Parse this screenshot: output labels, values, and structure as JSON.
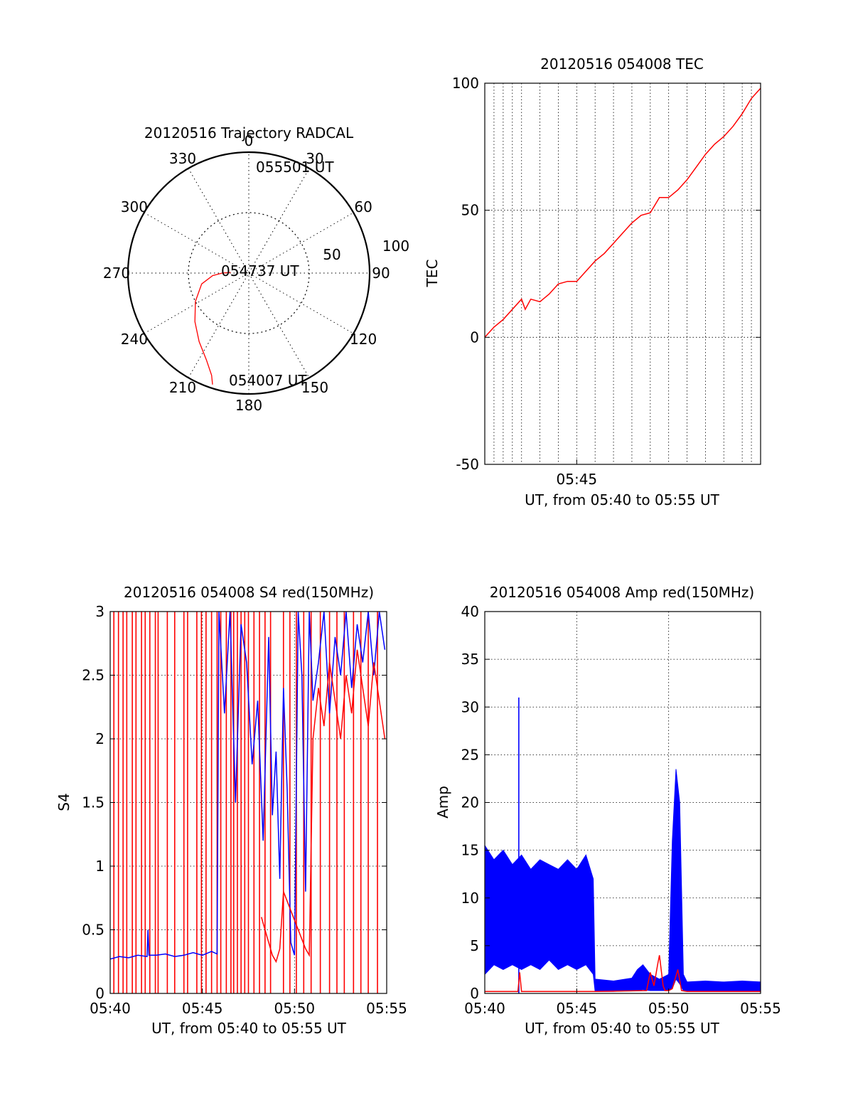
{
  "colors": {
    "red": "#ff0000",
    "blue": "#0000ff",
    "axis": "#000000",
    "grid": "#000000",
    "background": "#ffffff"
  },
  "chart_data": [
    {
      "id": "trajectory",
      "type": "polar",
      "title": "20120516 Trajectory RADCAL",
      "rmax": 100,
      "ring_values": [
        50,
        100
      ],
      "ring_labels": [
        "50",
        "100"
      ],
      "azimuth_labels": [
        "0",
        "30",
        "60",
        "90",
        "120",
        "150",
        "180",
        "210",
        "240",
        "270",
        "300",
        "330"
      ],
      "annotations": [
        "055501 UT",
        "054737 UT",
        "054007 UT"
      ],
      "series": [
        {
          "color": "red",
          "points": [
            [
              198,
              97
            ],
            [
              200,
              90
            ],
            [
              206,
              80
            ],
            [
              216,
              70
            ],
            [
              228,
              60
            ],
            [
              242,
              50
            ],
            [
              257,
              40
            ],
            [
              266,
              30
            ],
            [
              270,
              22
            ],
            [
              272,
              15
            ]
          ]
        }
      ]
    },
    {
      "id": "tec",
      "type": "line",
      "title": "20120516 054008 TEC",
      "ylabel": "TEC",
      "xlabel": "UT, from 05:40 to 05:55 UT",
      "xlim": [
        0,
        15
      ],
      "ylim": [
        -50,
        100
      ],
      "yticks": [
        -50,
        0,
        50,
        100
      ],
      "ytick_labels": [
        "-50",
        "0",
        "50",
        "100"
      ],
      "xticks": [
        5
      ],
      "xtick_labels": [
        "05:45"
      ],
      "xgrid": [
        0.5,
        1,
        1.5,
        2,
        3,
        4,
        5,
        6,
        7,
        8,
        9,
        10,
        11,
        12,
        13,
        14,
        14.5
      ],
      "grid": true,
      "series": [
        {
          "color": "red",
          "x": [
            0,
            0.5,
            1,
            1.5,
            2,
            2.2,
            2.5,
            3,
            3.5,
            4,
            4.5,
            5,
            5.5,
            6,
            6.5,
            7,
            7.5,
            8,
            8.5,
            9,
            9.5,
            10,
            10.5,
            11,
            11.5,
            12,
            12.5,
            13,
            13.5,
            14,
            14.5,
            15
          ],
          "y": [
            0,
            4,
            7,
            11,
            15,
            11,
            15,
            14,
            17,
            21,
            22,
            22,
            26,
            30,
            33,
            37,
            41,
            45,
            48,
            49,
            55,
            55,
            58,
            62,
            67,
            72,
            76,
            79,
            83,
            88,
            94,
            98
          ]
        }
      ]
    },
    {
      "id": "s4",
      "type": "line",
      "title": "20120516 054008 S4 red(150MHz)",
      "ylabel": "S4",
      "xlabel": "UT, from 05:40 to 05:55 UT",
      "xlim": [
        0,
        15
      ],
      "ylim": [
        0,
        3
      ],
      "yticks": [
        0,
        0.5,
        1,
        1.5,
        2,
        2.5,
        3
      ],
      "ytick_labels": [
        "0",
        "0.5",
        "1",
        "1.5",
        "2",
        "2.5",
        "3"
      ],
      "xticks": [
        0,
        5,
        10,
        15
      ],
      "xtick_labels": [
        "05:40",
        "05:45",
        "05:50",
        "05:55"
      ],
      "grid": true,
      "series": [
        {
          "color": "red",
          "style": "spikes",
          "x": [
            0.2,
            0.45,
            0.7,
            0.9,
            1.2,
            1.4,
            1.7,
            1.9,
            2.15,
            2.45,
            2.6,
            3.1,
            3.5,
            4.0,
            4.2,
            4.7,
            4.95,
            5.2,
            5.5,
            5.8,
            6.0,
            6.3,
            6.55,
            6.7,
            6.9,
            7.1,
            7.3,
            7.5,
            7.8,
            8.1,
            8.4,
            8.7,
            9.4,
            9.75,
            10.1,
            10.5,
            10.9,
            11.4,
            11.9,
            12.3,
            12.7,
            13.2,
            13.6,
            14.0,
            14.5
          ]
        },
        {
          "color": "blue",
          "x": [
            0,
            0.5,
            1,
            1.5,
            2,
            2.05,
            2.1,
            2.5,
            3,
            3.5,
            4,
            4.5,
            5,
            5.5,
            5.8,
            5.9,
            6.2,
            6.5,
            6.8,
            7.1,
            7.4,
            7.7,
            8.0,
            8.3,
            8.6,
            8.8,
            9.0,
            9.2,
            9.4,
            9.6,
            9.8,
            10.0,
            10.2,
            10.4,
            10.6,
            10.8,
            11.0,
            11.3,
            11.6,
            11.9,
            12.2,
            12.5,
            12.8,
            13.1,
            13.4,
            13.7,
            14.0,
            14.3,
            14.6,
            14.9
          ],
          "y": [
            0.27,
            0.29,
            0.28,
            0.3,
            0.29,
            0.5,
            0.3,
            0.3,
            0.31,
            0.29,
            0.3,
            0.32,
            0.3,
            0.33,
            0.31,
            3.0,
            2.2,
            3.0,
            1.5,
            2.9,
            2.6,
            1.8,
            2.3,
            1.2,
            2.8,
            1.4,
            1.9,
            0.9,
            2.4,
            1.6,
            0.4,
            0.3,
            3.0,
            2.5,
            0.8,
            3.0,
            2.3,
            2.6,
            3.0,
            2.2,
            2.8,
            2.5,
            3.0,
            2.4,
            2.9,
            2.6,
            3.0,
            2.5,
            3.0,
            2.7
          ]
        },
        {
          "color": "red",
          "x": [
            8.2,
            8.4,
            8.6,
            8.8,
            9.0,
            9.2,
            9.4,
            10.6,
            10.8,
            11.0,
            11.3,
            11.6,
            11.9,
            12.2,
            12.5,
            12.8,
            13.1,
            13.4,
            13.7,
            14.0,
            14.3,
            14.6,
            14.9
          ],
          "y": [
            0.6,
            0.5,
            0.4,
            0.3,
            0.25,
            0.35,
            0.8,
            0.35,
            0.3,
            2.0,
            2.4,
            2.1,
            2.6,
            2.3,
            2.0,
            2.5,
            2.2,
            2.7,
            2.4,
            2.1,
            2.6,
            2.3,
            2.0
          ]
        }
      ]
    },
    {
      "id": "amp",
      "type": "line",
      "title": "20120516 054008 Amp red(150MHz)",
      "ylabel": "Amp",
      "xlabel": "UT, from 05:40 to 05:55 UT",
      "xlim": [
        0,
        15
      ],
      "ylim": [
        0,
        40
      ],
      "yticks": [
        0,
        5,
        10,
        15,
        20,
        25,
        30,
        35,
        40
      ],
      "ytick_labels": [
        "0",
        "5",
        "10",
        "15",
        "20",
        "25",
        "30",
        "35",
        "40"
      ],
      "xticks": [
        0,
        5,
        10,
        15
      ],
      "xtick_labels": [
        "05:40",
        "05:45",
        "05:50",
        "05:55"
      ],
      "grid": true,
      "series": [
        {
          "color": "blue",
          "style": "band",
          "x": [
            0,
            0.5,
            1,
            1.5,
            2,
            2.5,
            3,
            3.5,
            4,
            4.5,
            5,
            5.5,
            5.9,
            6.0,
            7,
            8,
            8.3,
            8.6,
            9.0,
            9.5,
            10.0,
            10.2,
            10.4,
            10.6,
            10.8,
            11.0,
            12,
            13,
            14,
            15
          ],
          "low": [
            2.0,
            3.0,
            2.5,
            3.0,
            2.5,
            3.0,
            2.5,
            3.5,
            2.5,
            3.0,
            2.5,
            3.0,
            2.0,
            0.2,
            0.2,
            0.3,
            0.3,
            0.4,
            0.3,
            0.3,
            0.3,
            0.5,
            1.5,
            1.0,
            0.3,
            0.2,
            0.2,
            0.2,
            0.2,
            0.2
          ],
          "high": [
            15.5,
            14.0,
            15.0,
            13.5,
            14.5,
            13.0,
            14.0,
            13.5,
            13.0,
            14.0,
            13.0,
            14.5,
            12.0,
            1.5,
            1.3,
            1.6,
            2.5,
            3.0,
            2.0,
            1.5,
            2.0,
            16.0,
            23.5,
            20.0,
            2.0,
            1.2,
            1.3,
            1.2,
            1.3,
            1.2
          ]
        },
        {
          "color": "blue",
          "style": "spikes",
          "x": [
            1.85
          ],
          "y": [
            31
          ]
        },
        {
          "color": "red",
          "x": [
            0,
            1.8,
            1.9,
            2.0,
            6.0,
            8.8,
            9.0,
            9.2,
            9.4,
            9.5,
            9.7,
            9.8,
            10.0,
            10.2,
            10.5,
            10.7,
            11,
            15
          ],
          "y": [
            0.2,
            0.2,
            2.2,
            0.2,
            0.2,
            0.3,
            2.2,
            0.8,
            3.0,
            4.0,
            0.8,
            0.3,
            0.3,
            0.5,
            2.5,
            0.3,
            0.2,
            0.2
          ]
        }
      ]
    }
  ]
}
